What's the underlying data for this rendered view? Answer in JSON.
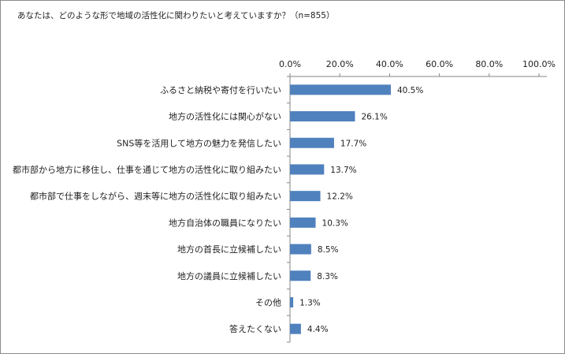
{
  "chart_data": {
    "type": "bar",
    "orientation": "horizontal",
    "title": "あなたは、どのような形で地域の活性化に関わりたいと考えていますか？（n=855）",
    "xlim": [
      0,
      100
    ],
    "x_ticks": [
      "0.0%",
      "20.0%",
      "40.0%",
      "60.0%",
      "80.0%",
      "100.0%"
    ],
    "tick_values": [
      0,
      20,
      40,
      60,
      80,
      100
    ],
    "categories": [
      "ふるさと納税や寄付を行いたい",
      "地方の活性化には関心がない",
      "SNS等を活用して地方の魅力を発信したい",
      "都市部から地方に移住し、仕事を通じて地方の活性化に取り組みたい",
      "都市部で仕事をしながら、週末等に地方の活性化に取り組みたい",
      "地方自治体の職員になりたい",
      "地方の首長に立候補したい",
      "地方の議員に立候補したい",
      "その他",
      "答えたくない"
    ],
    "values": [
      40.5,
      26.1,
      17.7,
      13.7,
      12.2,
      10.3,
      8.5,
      8.3,
      1.3,
      4.4
    ],
    "value_labels": [
      "40.5%",
      "26.1%",
      "17.7%",
      "13.7%",
      "12.2%",
      "10.3%",
      "8.5%",
      "8.3%",
      "1.3%",
      "4.4%"
    ],
    "bar_color": "#4f81bd",
    "axis_color": "#868686",
    "grid": false,
    "legend": "none"
  }
}
